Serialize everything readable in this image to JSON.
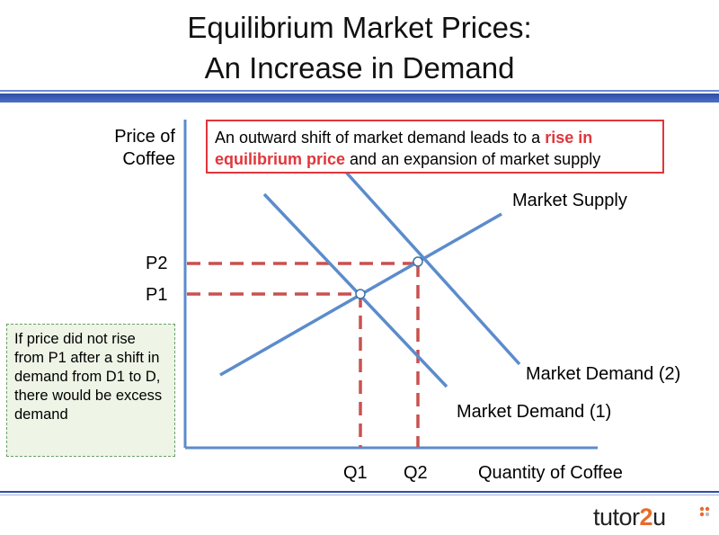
{
  "title": {
    "line1": "Equilibrium Market Prices:",
    "line2": "An Increase in Demand"
  },
  "axis": {
    "y_label_line1": "Price of",
    "y_label_line2": "Coffee",
    "x_label": "Quantity of Coffee"
  },
  "callout": {
    "text_before": "An outward shift of market demand leads to a ",
    "text_highlight": "rise in equilibrium price",
    "text_after": " and an expansion of market supply"
  },
  "note": {
    "text": "If price did not rise from P1 after a shift in demand from D1 to D, there would be excess demand"
  },
  "curves": {
    "supply_label": "Market Supply",
    "demand2_label": "Market Demand (2)",
    "demand1_label": "Market Demand (1)"
  },
  "ticks": {
    "p2": "P2",
    "p1": "P1",
    "q1": "Q1",
    "q2": "Q2"
  },
  "colors": {
    "curve": "#5b8ccc",
    "guide": "#c9514f",
    "callout_border": "#e0363b",
    "highlight": "#e0363b",
    "header_bar": "#2e4fa8",
    "logo_accent": "#e86a2a"
  },
  "logo": {
    "text_a": "tutor",
    "text_b": "2",
    "text_c": "u"
  }
}
